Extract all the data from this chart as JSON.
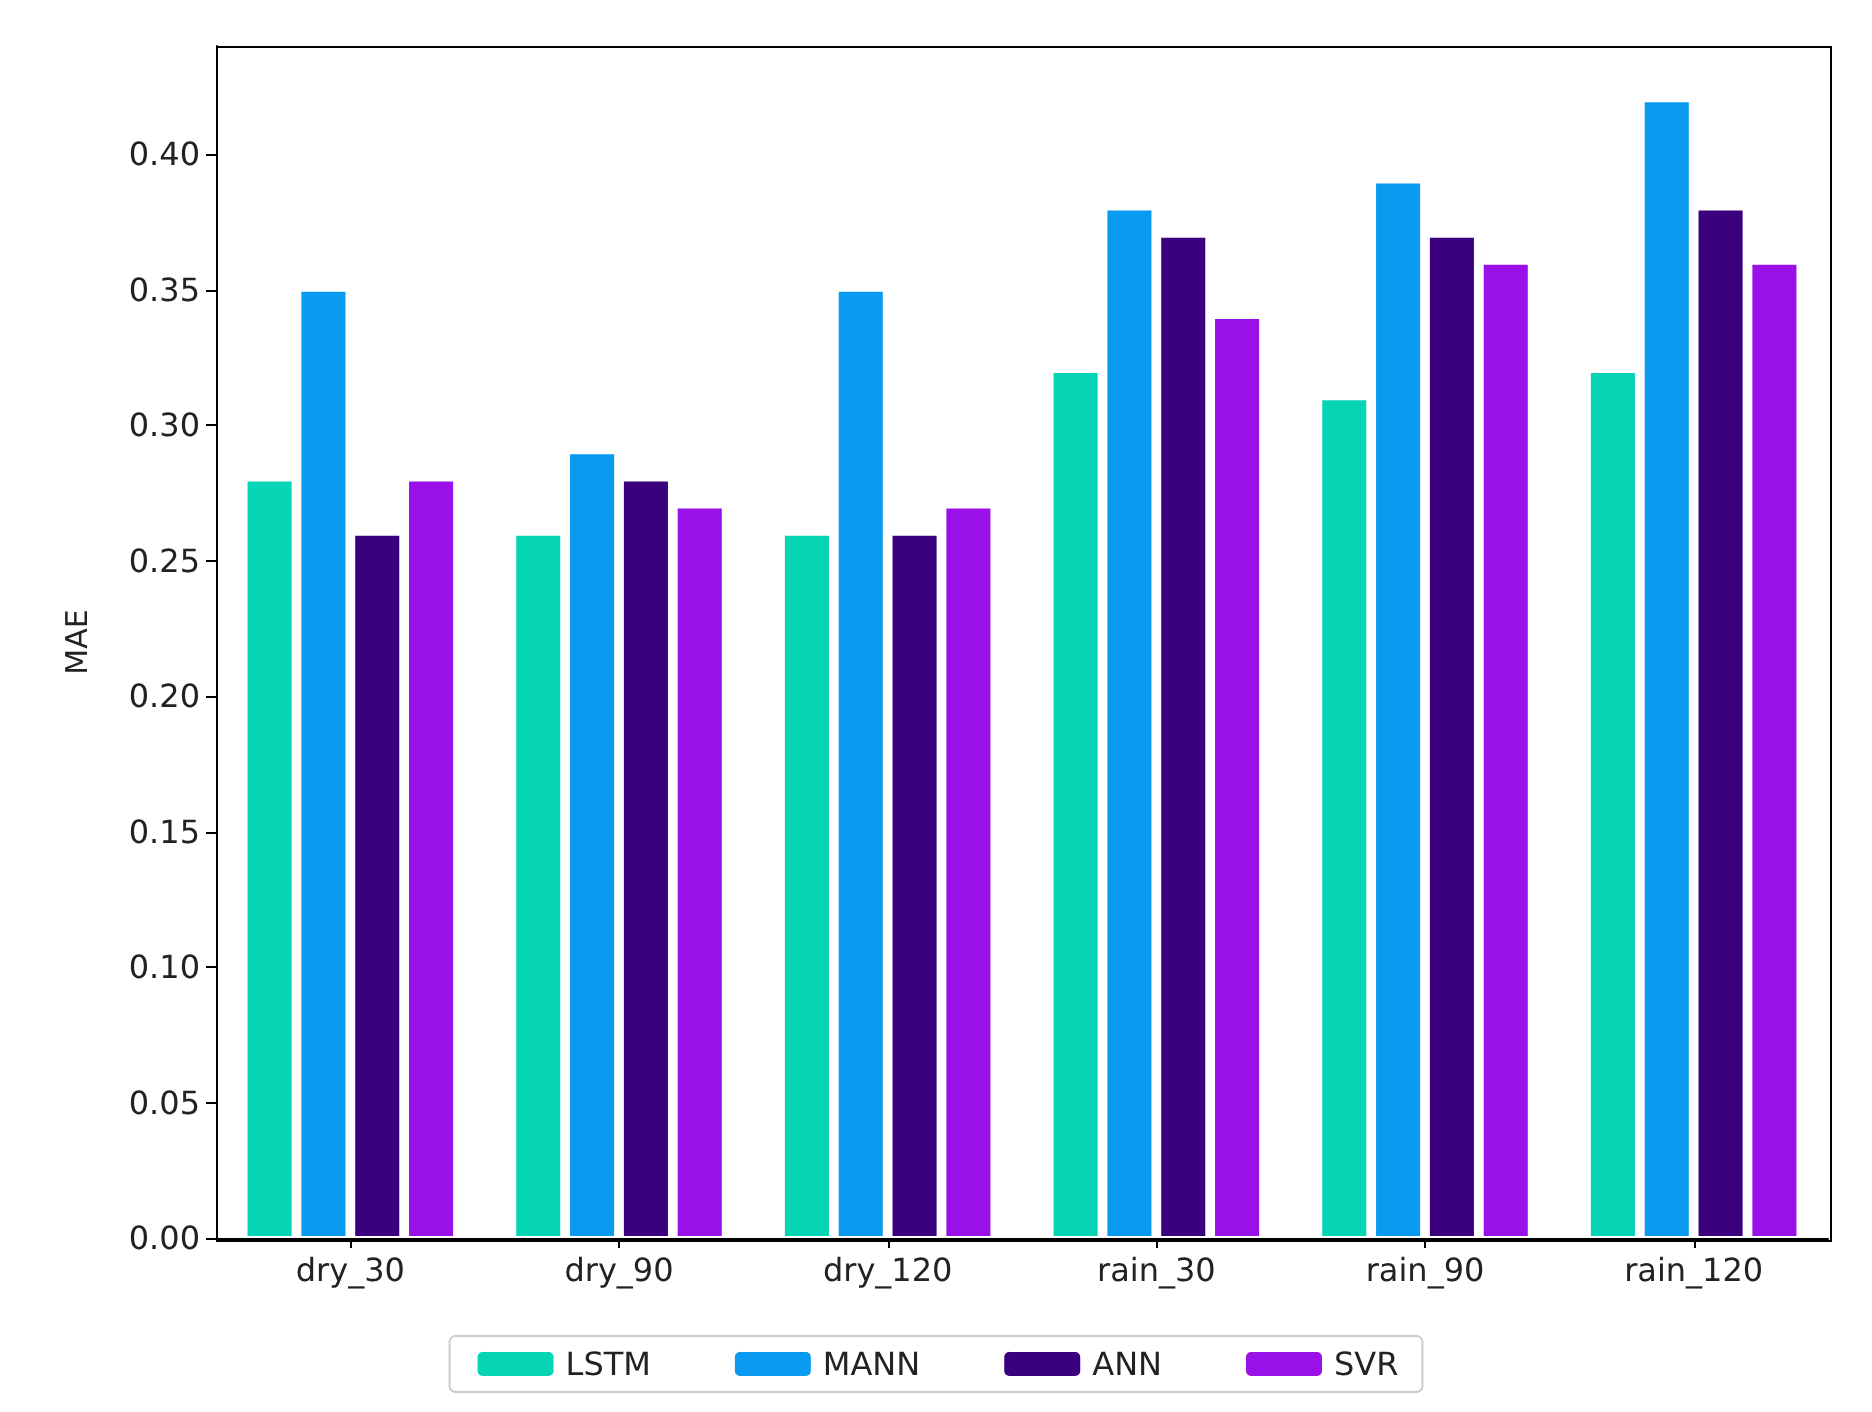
{
  "chart_data": {
    "type": "bar",
    "ylabel": "MAE",
    "categories": [
      "dry_30",
      "dry_90",
      "dry_120",
      "rain_30",
      "rain_90",
      "rain_120"
    ],
    "series": [
      {
        "name": "LSTM",
        "color": "#05d5b4",
        "values": [
          0.28,
          0.26,
          0.26,
          0.32,
          0.31,
          0.32
        ]
      },
      {
        "name": "MANN",
        "color": "#0a9af0",
        "values": [
          0.35,
          0.29,
          0.35,
          0.38,
          0.39,
          0.42
        ]
      },
      {
        "name": "ANN",
        "color": "#3a007e",
        "values": [
          0.26,
          0.28,
          0.26,
          0.37,
          0.37,
          0.38
        ]
      },
      {
        "name": "SVR",
        "color": "#9a10e8",
        "values": [
          0.28,
          0.27,
          0.27,
          0.34,
          0.36,
          0.36
        ]
      }
    ],
    "ylim": [
      0,
      0.44
    ],
    "yticks": [
      {
        "value": 0,
        "label": "0.00"
      },
      {
        "value": 0.05,
        "label": "0.05"
      },
      {
        "value": 0.1,
        "label": "0.10"
      },
      {
        "value": 0.15,
        "label": "0.15"
      },
      {
        "value": 0.2,
        "label": "0.20"
      },
      {
        "value": 0.25,
        "label": "0.25"
      },
      {
        "value": 0.3,
        "label": "0.30"
      },
      {
        "value": 0.35,
        "label": "0.35"
      },
      {
        "value": 0.4,
        "label": "0.40"
      }
    ],
    "grid": false,
    "legend": "bottom"
  }
}
